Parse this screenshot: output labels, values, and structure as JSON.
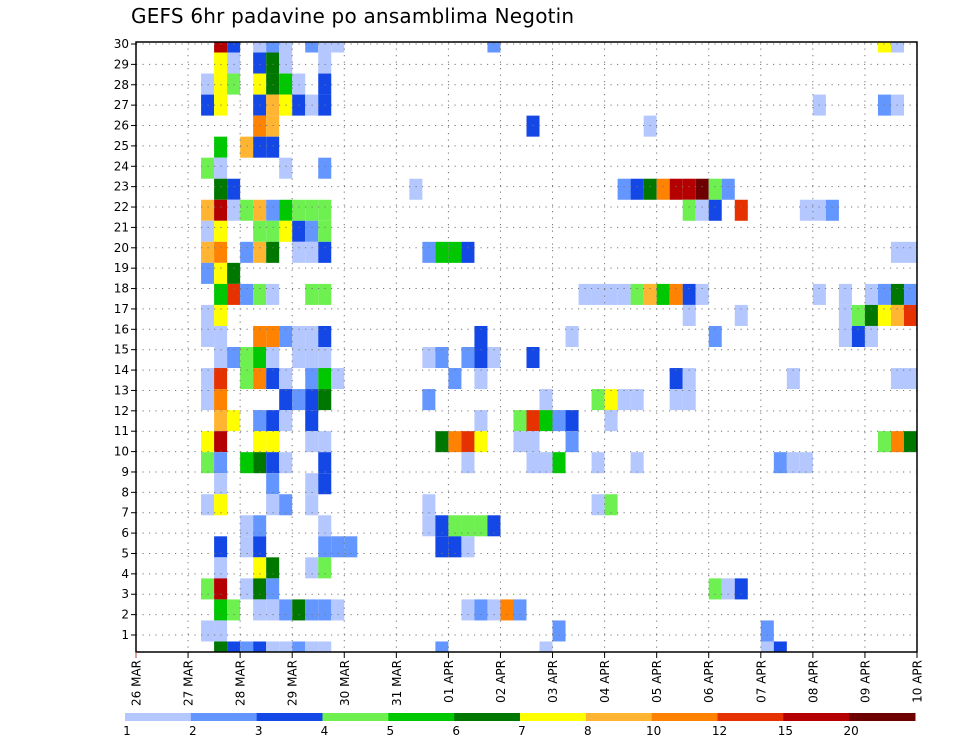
{
  "chart_data": {
    "type": "heatmap",
    "title": "GEFS 6hr padavine po ansamblima Negotin",
    "xlabel": "",
    "ylabel": "",
    "x_step_hours": 6,
    "x_steps": 60,
    "x_tick_labels": [
      "26 MAR",
      "27 MAR",
      "28 MAR",
      "29 MAR",
      "30 MAR",
      "31 MAR",
      "01 APR",
      "02 APR",
      "03 APR",
      "04 APR",
      "05 APR",
      "06 APR",
      "07 APR",
      "08 APR",
      "09 APR",
      "10 APR"
    ],
    "y_tick_labels": [
      "1",
      "2",
      "3",
      "4",
      "5",
      "6",
      "7",
      "8",
      "9",
      "10",
      "11",
      "12",
      "13",
      "14",
      "15",
      "16",
      "17",
      "18",
      "19",
      "20",
      "21",
      "22",
      "23",
      "24",
      "25",
      "26",
      "27",
      "28",
      "29",
      "30"
    ],
    "ylim": [
      1,
      30
    ],
    "grid": true,
    "legend": {
      "placement": "bottom",
      "labels": [
        "1",
        "2",
        "3",
        "4",
        "5",
        "6",
        "7",
        "8",
        "10",
        "12",
        "15",
        "20"
      ],
      "bins": [
        1,
        2,
        3,
        4,
        5,
        6,
        7,
        8,
        10,
        12,
        15,
        20
      ],
      "colors": [
        "#b4c8ff",
        "#6496ff",
        "#1448e6",
        "#6ef050",
        "#00c800",
        "#007800",
        "#ffff00",
        "#ffb432",
        "#ff8200",
        "#e63200",
        "#b40000",
        "#6e0000"
      ]
    },
    "cells_format": "[6hr step index, ensemble member, precipitation bin lower bound mm]",
    "cells": [
      [
        6,
        30,
        15
      ],
      [
        7,
        30,
        3
      ],
      [
        9,
        30,
        1
      ],
      [
        10,
        30,
        2
      ],
      [
        11,
        30,
        1
      ],
      [
        13,
        30,
        2
      ],
      [
        14,
        30,
        1
      ],
      [
        15,
        30,
        1
      ],
      [
        27,
        30,
        2
      ],
      [
        57,
        30,
        7
      ],
      [
        58,
        30,
        1
      ],
      [
        6,
        29,
        7
      ],
      [
        7,
        29,
        1
      ],
      [
        9,
        29,
        3
      ],
      [
        10,
        29,
        6
      ],
      [
        11,
        29,
        1
      ],
      [
        14,
        29,
        1
      ],
      [
        5,
        28,
        1
      ],
      [
        6,
        28,
        7
      ],
      [
        7,
        28,
        4
      ],
      [
        9,
        28,
        7
      ],
      [
        10,
        28,
        6
      ],
      [
        11,
        28,
        5
      ],
      [
        12,
        28,
        1
      ],
      [
        14,
        28,
        3
      ],
      [
        5,
        27,
        3
      ],
      [
        6,
        27,
        7
      ],
      [
        9,
        27,
        3
      ],
      [
        10,
        27,
        8
      ],
      [
        11,
        27,
        7
      ],
      [
        12,
        27,
        3
      ],
      [
        13,
        27,
        1
      ],
      [
        14,
        27,
        3
      ],
      [
        52,
        27,
        1
      ],
      [
        57,
        27,
        2
      ],
      [
        58,
        27,
        1
      ],
      [
        9,
        26,
        10
      ],
      [
        10,
        26,
        8
      ],
      [
        30,
        26,
        3
      ],
      [
        39,
        26,
        1
      ],
      [
        6,
        25,
        5
      ],
      [
        8,
        25,
        8
      ],
      [
        9,
        25,
        3
      ],
      [
        10,
        25,
        3
      ],
      [
        5,
        24,
        4
      ],
      [
        6,
        24,
        1
      ],
      [
        11,
        24,
        1
      ],
      [
        14,
        24,
        2
      ],
      [
        6,
        23,
        6
      ],
      [
        7,
        23,
        3
      ],
      [
        21,
        23,
        1
      ],
      [
        37,
        23,
        2
      ],
      [
        38,
        23,
        3
      ],
      [
        39,
        23,
        6
      ],
      [
        40,
        23,
        10
      ],
      [
        41,
        23,
        15
      ],
      [
        42,
        23,
        15
      ],
      [
        43,
        23,
        20
      ],
      [
        44,
        23,
        4
      ],
      [
        45,
        23,
        2
      ],
      [
        5,
        22,
        8
      ],
      [
        6,
        22,
        15
      ],
      [
        7,
        22,
        1
      ],
      [
        8,
        22,
        4
      ],
      [
        9,
        22,
        8
      ],
      [
        10,
        22,
        2
      ],
      [
        11,
        22,
        5
      ],
      [
        12,
        22,
        4
      ],
      [
        13,
        22,
        4
      ],
      [
        14,
        22,
        4
      ],
      [
        42,
        22,
        4
      ],
      [
        43,
        22,
        1
      ],
      [
        44,
        22,
        3
      ],
      [
        46,
        22,
        12
      ],
      [
        51,
        22,
        1
      ],
      [
        52,
        22,
        1
      ],
      [
        53,
        22,
        2
      ],
      [
        5,
        21,
        1
      ],
      [
        6,
        21,
        7
      ],
      [
        9,
        21,
        4
      ],
      [
        10,
        21,
        4
      ],
      [
        11,
        21,
        7
      ],
      [
        12,
        21,
        3
      ],
      [
        13,
        21,
        2
      ],
      [
        14,
        21,
        4
      ],
      [
        5,
        20,
        8
      ],
      [
        6,
        20,
        10
      ],
      [
        8,
        20,
        2
      ],
      [
        9,
        20,
        8
      ],
      [
        10,
        20,
        6
      ],
      [
        12,
        20,
        1
      ],
      [
        13,
        20,
        1
      ],
      [
        14,
        20,
        3
      ],
      [
        22,
        20,
        2
      ],
      [
        23,
        20,
        5
      ],
      [
        24,
        20,
        5
      ],
      [
        25,
        20,
        3
      ],
      [
        58,
        20,
        1
      ],
      [
        59,
        20,
        1
      ],
      [
        5,
        19,
        2
      ],
      [
        6,
        19,
        7
      ],
      [
        7,
        19,
        6
      ],
      [
        6,
        18,
        5
      ],
      [
        7,
        18,
        12
      ],
      [
        8,
        18,
        2
      ],
      [
        9,
        18,
        4
      ],
      [
        10,
        18,
        1
      ],
      [
        13,
        18,
        4
      ],
      [
        14,
        18,
        4
      ],
      [
        34,
        18,
        1
      ],
      [
        35,
        18,
        1
      ],
      [
        36,
        18,
        1
      ],
      [
        37,
        18,
        1
      ],
      [
        38,
        18,
        4
      ],
      [
        39,
        18,
        8
      ],
      [
        40,
        18,
        5
      ],
      [
        41,
        18,
        10
      ],
      [
        42,
        18,
        3
      ],
      [
        43,
        18,
        1
      ],
      [
        52,
        18,
        1
      ],
      [
        54,
        18,
        1
      ],
      [
        56,
        18,
        1
      ],
      [
        57,
        18,
        2
      ],
      [
        58,
        18,
        6
      ],
      [
        59,
        18,
        2
      ],
      [
        5,
        17,
        1
      ],
      [
        6,
        17,
        7
      ],
      [
        42,
        17,
        1
      ],
      [
        46,
        17,
        1
      ],
      [
        54,
        17,
        1
      ],
      [
        55,
        17,
        4
      ],
      [
        56,
        17,
        6
      ],
      [
        57,
        17,
        7
      ],
      [
        58,
        17,
        8
      ],
      [
        59,
        17,
        12
      ],
      [
        5,
        16,
        1
      ],
      [
        6,
        16,
        1
      ],
      [
        9,
        16,
        10
      ],
      [
        10,
        16,
        10
      ],
      [
        11,
        16,
        2
      ],
      [
        12,
        16,
        1
      ],
      [
        13,
        16,
        1
      ],
      [
        14,
        16,
        3
      ],
      [
        26,
        16,
        3
      ],
      [
        33,
        16,
        1
      ],
      [
        44,
        16,
        2
      ],
      [
        54,
        16,
        1
      ],
      [
        55,
        16,
        3
      ],
      [
        56,
        16,
        1
      ],
      [
        6,
        15,
        1
      ],
      [
        7,
        15,
        2
      ],
      [
        8,
        15,
        4
      ],
      [
        9,
        15,
        5
      ],
      [
        10,
        15,
        1
      ],
      [
        12,
        15,
        1
      ],
      [
        13,
        15,
        1
      ],
      [
        14,
        15,
        1
      ],
      [
        22,
        15,
        1
      ],
      [
        23,
        15,
        2
      ],
      [
        25,
        15,
        2
      ],
      [
        26,
        15,
        3
      ],
      [
        27,
        15,
        1
      ],
      [
        30,
        15,
        3
      ],
      [
        5,
        14,
        1
      ],
      [
        6,
        14,
        12
      ],
      [
        8,
        14,
        4
      ],
      [
        9,
        14,
        10
      ],
      [
        10,
        14,
        3
      ],
      [
        11,
        14,
        1
      ],
      [
        13,
        14,
        2
      ],
      [
        14,
        14,
        5
      ],
      [
        15,
        14,
        1
      ],
      [
        24,
        14,
        2
      ],
      [
        26,
        14,
        1
      ],
      [
        41,
        14,
        3
      ],
      [
        42,
        14,
        1
      ],
      [
        50,
        14,
        1
      ],
      [
        58,
        14,
        1
      ],
      [
        59,
        14,
        1
      ],
      [
        5,
        13,
        1
      ],
      [
        6,
        13,
        10
      ],
      [
        11,
        13,
        3
      ],
      [
        12,
        13,
        2
      ],
      [
        13,
        13,
        3
      ],
      [
        14,
        13,
        6
      ],
      [
        22,
        13,
        2
      ],
      [
        31,
        13,
        1
      ],
      [
        35,
        13,
        4
      ],
      [
        36,
        13,
        7
      ],
      [
        37,
        13,
        1
      ],
      [
        38,
        13,
        1
      ],
      [
        41,
        13,
        1
      ],
      [
        42,
        13,
        1
      ],
      [
        6,
        12,
        8
      ],
      [
        7,
        12,
        7
      ],
      [
        9,
        12,
        2
      ],
      [
        10,
        12,
        3
      ],
      [
        11,
        12,
        1
      ],
      [
        13,
        12,
        3
      ],
      [
        26,
        12,
        1
      ],
      [
        29,
        12,
        4
      ],
      [
        30,
        12,
        12
      ],
      [
        31,
        12,
        5
      ],
      [
        32,
        12,
        2
      ],
      [
        33,
        12,
        3
      ],
      [
        36,
        12,
        1
      ],
      [
        5,
        11,
        7
      ],
      [
        6,
        11,
        15
      ],
      [
        9,
        11,
        7
      ],
      [
        10,
        11,
        7
      ],
      [
        13,
        11,
        1
      ],
      [
        14,
        11,
        1
      ],
      [
        23,
        11,
        6
      ],
      [
        24,
        11,
        10
      ],
      [
        25,
        11,
        12
      ],
      [
        26,
        11,
        7
      ],
      [
        29,
        11,
        1
      ],
      [
        30,
        11,
        1
      ],
      [
        33,
        11,
        2
      ],
      [
        57,
        11,
        4
      ],
      [
        58,
        11,
        10
      ],
      [
        59,
        11,
        6
      ],
      [
        5,
        10,
        4
      ],
      [
        6,
        10,
        2
      ],
      [
        8,
        10,
        5
      ],
      [
        9,
        10,
        6
      ],
      [
        10,
        10,
        3
      ],
      [
        11,
        10,
        1
      ],
      [
        14,
        10,
        3
      ],
      [
        25,
        10,
        1
      ],
      [
        30,
        10,
        1
      ],
      [
        31,
        10,
        1
      ],
      [
        32,
        10,
        5
      ],
      [
        35,
        10,
        1
      ],
      [
        38,
        10,
        1
      ],
      [
        49,
        10,
        2
      ],
      [
        50,
        10,
        1
      ],
      [
        51,
        10,
        1
      ],
      [
        6,
        9,
        1
      ],
      [
        10,
        9,
        2
      ],
      [
        13,
        9,
        1
      ],
      [
        14,
        9,
        3
      ],
      [
        5,
        8,
        1
      ],
      [
        6,
        8,
        7
      ],
      [
        10,
        8,
        1
      ],
      [
        11,
        8,
        2
      ],
      [
        13,
        8,
        1
      ],
      [
        22,
        8,
        1
      ],
      [
        35,
        8,
        1
      ],
      [
        36,
        8,
        4
      ],
      [
        8,
        7,
        1
      ],
      [
        9,
        7,
        2
      ],
      [
        14,
        7,
        1
      ],
      [
        22,
        7,
        1
      ],
      [
        23,
        7,
        3
      ],
      [
        24,
        7,
        4
      ],
      [
        25,
        7,
        4
      ],
      [
        26,
        7,
        4
      ],
      [
        27,
        7,
        3
      ],
      [
        6,
        6,
        3
      ],
      [
        8,
        6,
        1
      ],
      [
        9,
        6,
        3
      ],
      [
        14,
        6,
        2
      ],
      [
        15,
        6,
        2
      ],
      [
        16,
        6,
        2
      ],
      [
        23,
        6,
        3
      ],
      [
        24,
        6,
        3
      ],
      [
        25,
        6,
        1
      ],
      [
        6,
        5,
        1
      ],
      [
        9,
        5,
        7
      ],
      [
        10,
        5,
        6
      ],
      [
        13,
        5,
        1
      ],
      [
        14,
        5,
        4
      ],
      [
        5,
        4,
        4
      ],
      [
        6,
        4,
        15
      ],
      [
        8,
        4,
        1
      ],
      [
        9,
        4,
        6
      ],
      [
        10,
        4,
        2
      ],
      [
        44,
        4,
        4
      ],
      [
        45,
        4,
        1
      ],
      [
        46,
        4,
        3
      ],
      [
        6,
        3,
        5
      ],
      [
        7,
        3,
        4
      ],
      [
        9,
        3,
        1
      ],
      [
        10,
        3,
        1
      ],
      [
        11,
        3,
        2
      ],
      [
        12,
        3,
        6
      ],
      [
        13,
        3,
        2
      ],
      [
        14,
        3,
        2
      ],
      [
        15,
        3,
        1
      ],
      [
        25,
        3,
        1
      ],
      [
        26,
        3,
        2
      ],
      [
        27,
        3,
        1
      ],
      [
        28,
        3,
        10
      ],
      [
        29,
        3,
        2
      ],
      [
        5,
        2,
        1
      ],
      [
        6,
        2,
        1
      ],
      [
        32,
        2,
        2
      ],
      [
        48,
        2,
        2
      ],
      [
        6,
        1,
        6
      ],
      [
        7,
        1,
        3
      ],
      [
        8,
        1,
        2
      ],
      [
        9,
        1,
        3
      ],
      [
        10,
        1,
        1
      ],
      [
        11,
        1,
        1
      ],
      [
        12,
        1,
        2
      ],
      [
        13,
        1,
        1
      ],
      [
        14,
        1,
        1
      ],
      [
        23,
        1,
        2
      ],
      [
        31,
        1,
        1
      ],
      [
        48,
        1,
        1
      ],
      [
        49,
        1,
        3
      ]
    ]
  }
}
